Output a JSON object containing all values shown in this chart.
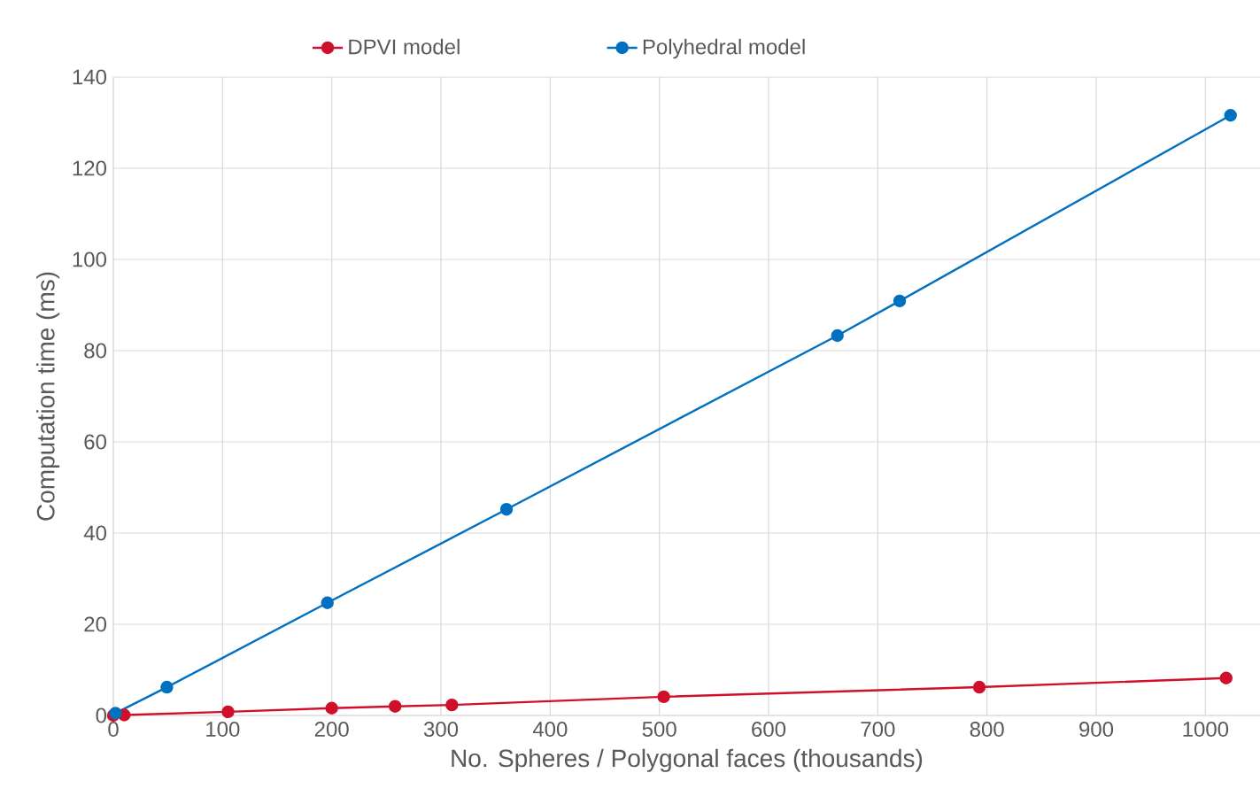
{
  "chart_data": {
    "type": "line",
    "xlabel": "No. Spheres / Polygonal faces (thousands)",
    "ylabel": "Computation time (ms)",
    "xlim": [
      0,
      1050
    ],
    "ylim": [
      0,
      140
    ],
    "xticks": [
      0,
      100,
      200,
      300,
      400,
      500,
      600,
      700,
      800,
      900,
      1000
    ],
    "yticks": [
      0,
      20,
      40,
      60,
      80,
      100,
      120,
      140
    ],
    "grid": true,
    "legend": "top",
    "marker": "circle",
    "line_style": "solid",
    "series": [
      {
        "name": "DPVI model",
        "color": "#d0102a",
        "x": [
          0,
          10,
          105,
          200,
          258,
          310,
          504,
          793,
          1019
        ],
        "values": [
          0,
          0.1,
          0.8,
          1.6,
          2,
          2.3,
          4.1,
          6.2,
          8.2
        ]
      },
      {
        "name": "Polyhedral model",
        "color": "#0070c0",
        "x": [
          2,
          49,
          196,
          360,
          663,
          720,
          1023
        ],
        "values": [
          0.5,
          6.2,
          24.7,
          45.2,
          83.3,
          90.9,
          131.6
        ]
      }
    ]
  }
}
